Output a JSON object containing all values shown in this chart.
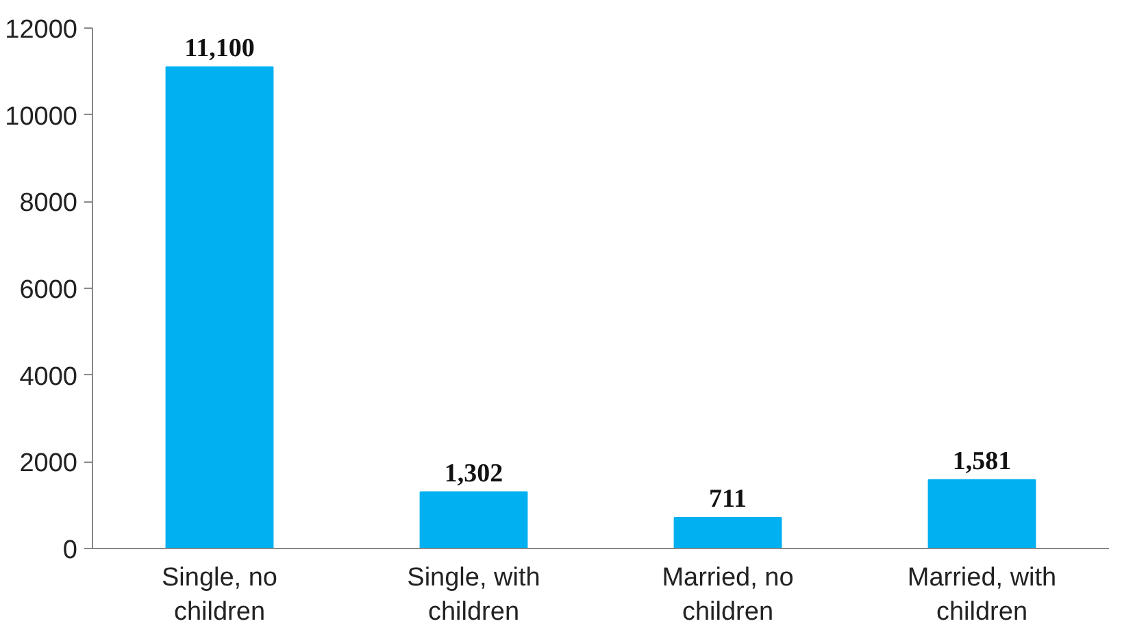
{
  "chart_data": {
    "type": "bar",
    "categories": [
      "Single, no children",
      "Single, with children",
      "Married, no children",
      "Married, with children"
    ],
    "values": [
      11100,
      1302,
      711,
      1581
    ],
    "value_labels": [
      "11,100",
      "1,302",
      "711",
      "1,581"
    ],
    "color": "#00b0f0",
    "ylim": [
      0,
      12000
    ],
    "yticks": [
      0,
      2000,
      4000,
      6000,
      8000,
      10000,
      12000
    ],
    "grid": false
  }
}
